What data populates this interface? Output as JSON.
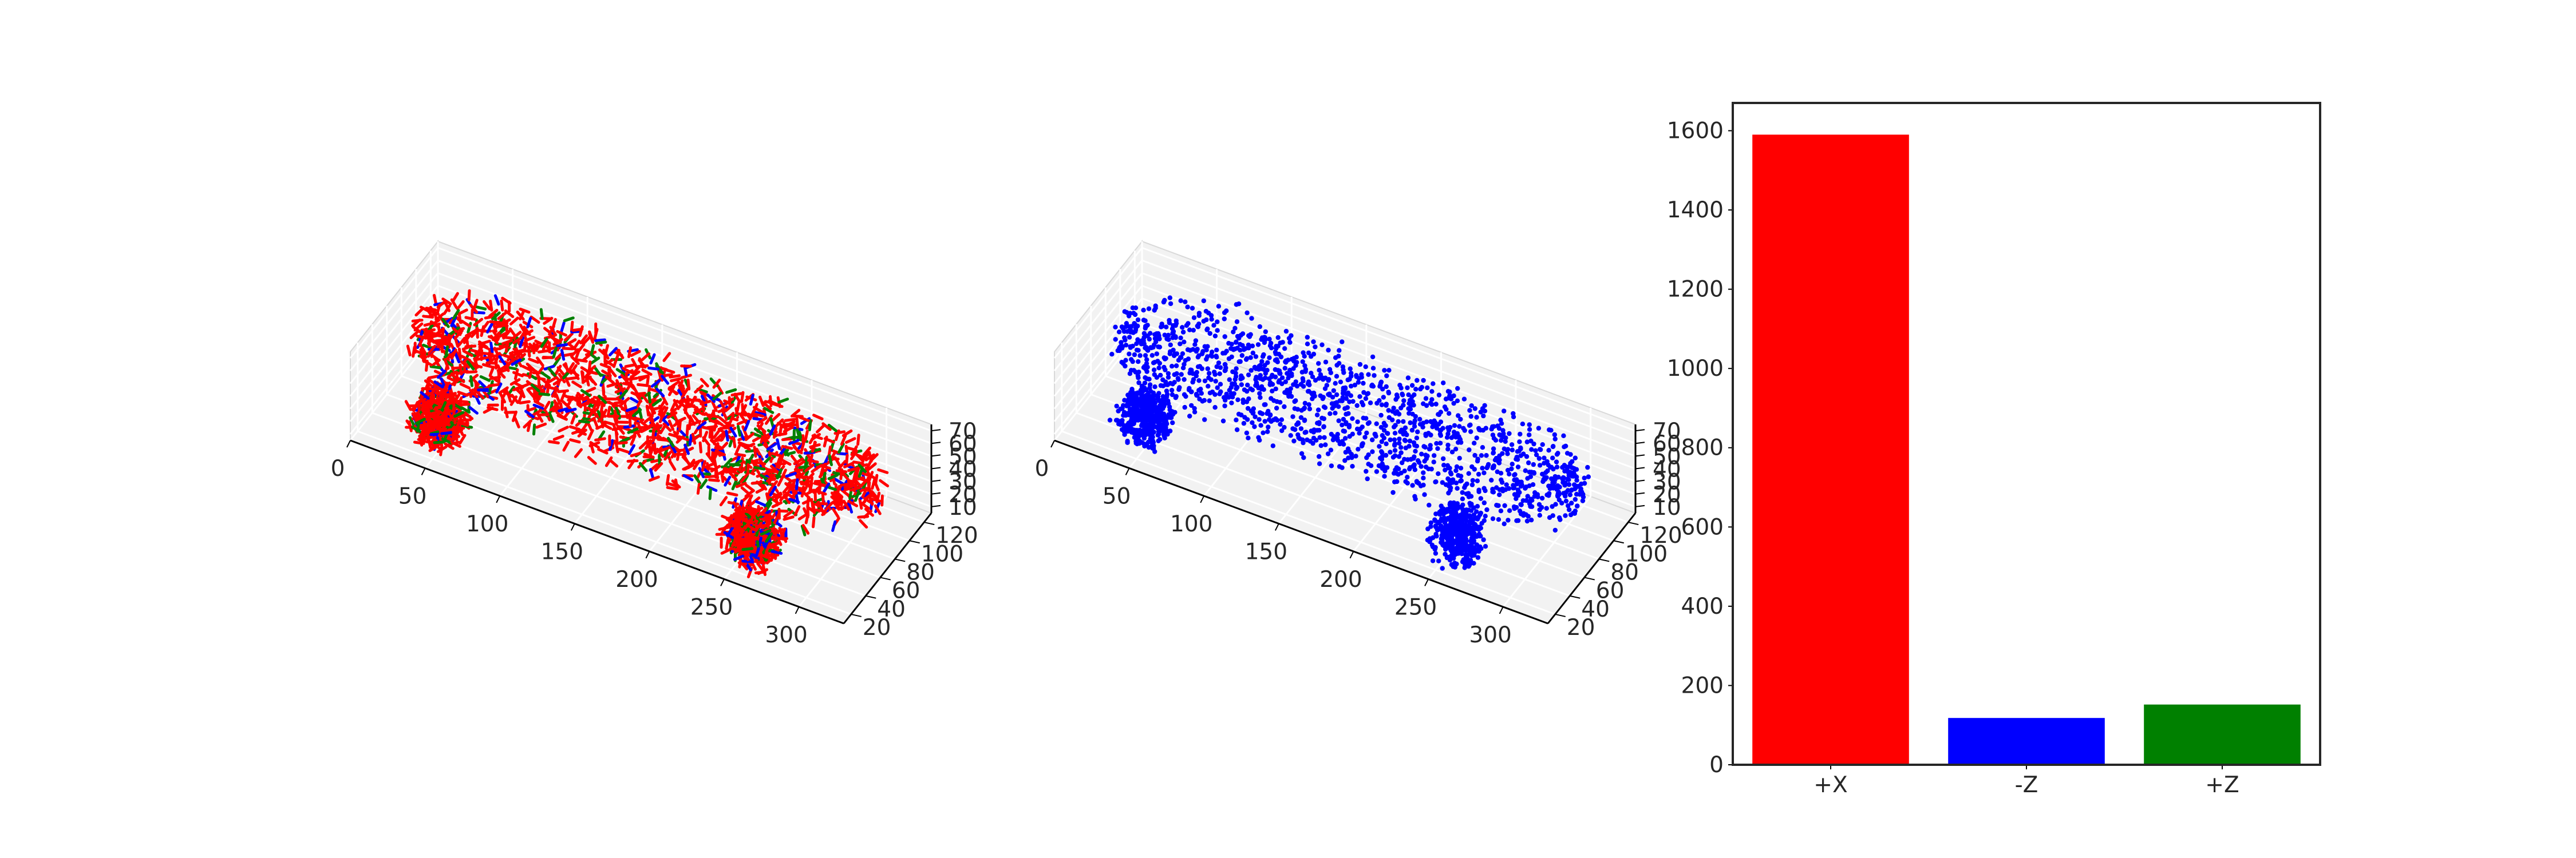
{
  "chart_data": [
    {
      "type": "scatter",
      "projection": "3d",
      "x_ticks": [
        "0",
        "50",
        "100",
        "150",
        "200",
        "250",
        "300"
      ],
      "y_ticks": [
        "20",
        "40",
        "60",
        "80",
        "100",
        "120"
      ],
      "z_ticks": [
        "10",
        "20",
        "30",
        "40",
        "50",
        "60",
        "70"
      ],
      "xlim": [
        0,
        330
      ],
      "ylim": [
        10,
        130
      ],
      "zlim": [
        5,
        75
      ],
      "series": [
        {
          "marker": "short-segments",
          "colors": [
            "#ff0000",
            "#0000ff",
            "#008000"
          ]
        }
      ],
      "grid": true,
      "background": "#f2f2f2"
    },
    {
      "type": "scatter",
      "projection": "3d",
      "x_ticks": [
        "0",
        "50",
        "100",
        "150",
        "200",
        "250",
        "300"
      ],
      "y_ticks": [
        "20",
        "40",
        "60",
        "80",
        "100",
        "120"
      ],
      "z_ticks": [
        "10",
        "20",
        "30",
        "40",
        "50",
        "60",
        "70"
      ],
      "xlim": [
        0,
        330
      ],
      "ylim": [
        10,
        130
      ],
      "zlim": [
        5,
        75
      ],
      "series": [
        {
          "marker": "dot",
          "colors": [
            "#0000ff"
          ]
        }
      ],
      "grid": true,
      "background": "#f2f2f2"
    },
    {
      "type": "bar",
      "categories": [
        "+X",
        "-Z",
        "+Z"
      ],
      "values": [
        1590,
        118,
        152
      ],
      "colors": [
        "#ff0000",
        "#0000ff",
        "#008000"
      ],
      "y_ticks": [
        "0",
        "200",
        "400",
        "600",
        "800",
        "1000",
        "1200",
        "1400",
        "1600"
      ],
      "ylim": [
        0,
        1670
      ],
      "grid": false
    }
  ]
}
